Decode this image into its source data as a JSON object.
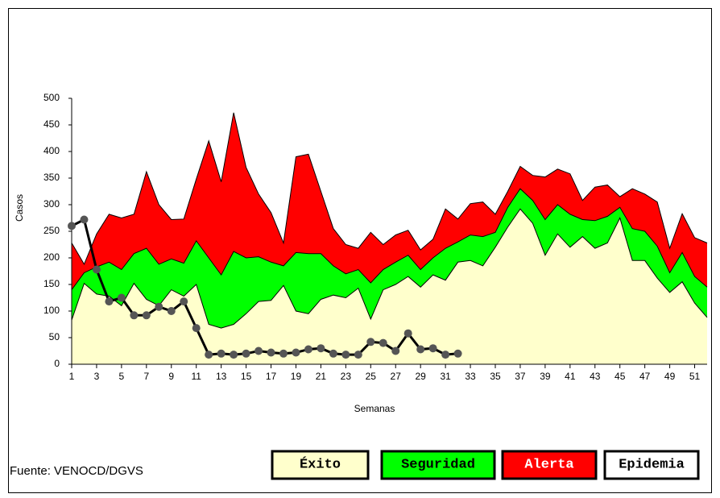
{
  "chart_data": {
    "type": "area",
    "y_label": "Casos",
    "x_label": "Semanas",
    "source": "Fuente: VENOCD/DGVS",
    "x": [
      1,
      2,
      3,
      4,
      5,
      6,
      7,
      8,
      9,
      10,
      11,
      12,
      13,
      14,
      15,
      16,
      17,
      18,
      19,
      20,
      21,
      22,
      23,
      24,
      25,
      26,
      27,
      28,
      29,
      30,
      31,
      32,
      33,
      34,
      35,
      36,
      37,
      38,
      39,
      40,
      41,
      42,
      43,
      44,
      45,
      46,
      47,
      48,
      49,
      50,
      51,
      52
    ],
    "xlim": [
      1,
      52
    ],
    "xticks": [
      1,
      3,
      5,
      7,
      9,
      11,
      13,
      15,
      17,
      19,
      21,
      23,
      25,
      27,
      29,
      31,
      33,
      35,
      37,
      39,
      41,
      43,
      45,
      47,
      49,
      51
    ],
    "ylim": [
      0,
      500
    ],
    "yticks": [
      0,
      50,
      100,
      150,
      200,
      250,
      300,
      350,
      400,
      450,
      500
    ],
    "series": [
      {
        "name": "Éxito",
        "color": "#ffffcc",
        "text_color": "#000000",
        "values": [
          83,
          152,
          132,
          128,
          110,
          152,
          122,
          110,
          140,
          128,
          150,
          75,
          68,
          75,
          95,
          118,
          120,
          148,
          100,
          95,
          122,
          130,
          125,
          143,
          85,
          140,
          150,
          165,
          145,
          168,
          158,
          192,
          195,
          185,
          220,
          258,
          292,
          265,
          205,
          245,
          220,
          240,
          218,
          228,
          275,
          195,
          195,
          162,
          135,
          155,
          115,
          88
        ]
      },
      {
        "name": "Seguridad",
        "color": "#00ff00",
        "text_color": "#000000",
        "values": [
          140,
          172,
          183,
          192,
          178,
          208,
          218,
          188,
          198,
          190,
          232,
          200,
          168,
          212,
          200,
          202,
          192,
          185,
          210,
          208,
          208,
          185,
          170,
          178,
          153,
          178,
          192,
          205,
          178,
          200,
          218,
          230,
          243,
          240,
          248,
          295,
          330,
          308,
          272,
          300,
          282,
          272,
          270,
          278,
          295,
          255,
          250,
          222,
          172,
          210,
          165,
          145
        ]
      },
      {
        "name": "Alerta",
        "color": "#ff0000",
        "text_color": "#ffffff",
        "values": [
          228,
          188,
          245,
          282,
          275,
          282,
          362,
          300,
          272,
          273,
          348,
          420,
          343,
          473,
          370,
          320,
          285,
          228,
          390,
          395,
          325,
          255,
          225,
          218,
          248,
          225,
          243,
          252,
          215,
          235,
          292,
          273,
          302,
          305,
          282,
          325,
          372,
          355,
          352,
          367,
          358,
          308,
          333,
          337,
          315,
          330,
          320,
          305,
          218,
          283,
          238,
          228
        ]
      }
    ],
    "zone_above": {
      "name": "Epidemia",
      "color": "#ffffff",
      "text_color": "#000000"
    },
    "cases": {
      "color": "#000000",
      "marker_color": "#555555",
      "values": [
        260,
        272,
        178,
        118,
        125,
        92,
        92,
        108,
        100,
        118,
        68,
        18,
        20,
        18,
        20,
        25,
        22,
        20,
        22,
        28,
        30,
        20,
        18,
        18,
        42,
        40,
        25,
        58,
        28,
        30,
        18,
        20,
        null,
        null,
        null,
        null,
        null,
        null,
        null,
        null,
        null,
        null,
        null,
        null,
        null,
        null,
        null,
        null,
        null,
        null,
        null,
        null
      ]
    }
  }
}
